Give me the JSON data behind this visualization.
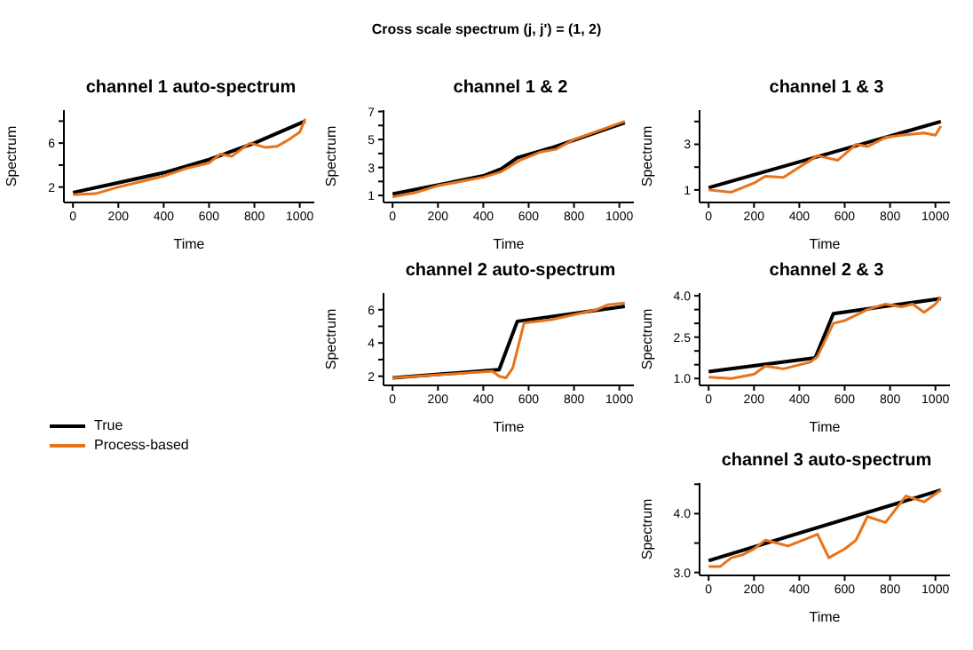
{
  "chart_data": [
    {
      "type": "line",
      "title": "channel 1 auto-spectrum",
      "annotations": [
        "Cross scale spectrum (j, j') = (1, 2)"
      ],
      "xlabel": "Time",
      "ylabel": "Spectrum",
      "legend": "bottom",
      "xlim": [
        -40,
        1064
      ],
      "xticks": [
        0,
        200,
        400,
        600,
        800,
        1000
      ],
      "ylim": [
        0.6,
        9.0
      ],
      "yticks": [
        2,
        {
          "value": 4,
          "label": null
        },
        6,
        {
          "value": 8,
          "label": null
        }
      ],
      "series": [
        {
          "name": "True",
          "color": "#000000",
          "x": [
            0,
            200,
            400,
            600,
            800,
            1024
          ],
          "values": [
            1.5,
            2.4,
            3.3,
            4.5,
            6.0,
            8.0
          ]
        },
        {
          "name": "Process-based",
          "color": "#e8731b",
          "x": [
            0,
            100,
            200,
            300,
            400,
            500,
            600,
            650,
            700,
            780,
            850,
            900,
            950,
            1000,
            1024
          ],
          "values": [
            1.3,
            1.4,
            2.0,
            2.5,
            3.0,
            3.7,
            4.2,
            5.0,
            4.8,
            6.0,
            5.6,
            5.7,
            6.3,
            7.0,
            8.2
          ]
        }
      ]
    },
    {
      "type": "line",
      "title": "channel 1 & 2",
      "xlabel": "Time",
      "ylabel": "Spectrum",
      "xlim": [
        -40,
        1064
      ],
      "xticks": [
        0,
        200,
        400,
        600,
        800,
        1000
      ],
      "ylim": [
        0.5,
        7.1
      ],
      "yticks": [
        1,
        {
          "value": 2,
          "label": null
        },
        3,
        {
          "value": 4,
          "label": null
        },
        5,
        {
          "value": 6,
          "label": null
        },
        7
      ],
      "series": [
        {
          "color": "#000000",
          "x": [
            0,
            400,
            480,
            550,
            700,
            1024
          ],
          "values": [
            1.1,
            2.4,
            2.9,
            3.7,
            4.4,
            6.2
          ]
        },
        {
          "color": "#e8731b",
          "x": [
            0,
            100,
            200,
            400,
            480,
            560,
            650,
            720,
            800,
            1024
          ],
          "values": [
            0.9,
            1.2,
            1.7,
            2.3,
            2.7,
            3.5,
            4.1,
            4.3,
            5.0,
            6.3
          ]
        }
      ]
    },
    {
      "type": "line",
      "title": "channel 1 & 3",
      "xlabel": "Time",
      "ylabel": "Spectrum",
      "xlim": [
        -40,
        1064
      ],
      "xticks": [
        0,
        200,
        400,
        600,
        800,
        1000
      ],
      "ylim": [
        0.45,
        4.5
      ],
      "yticks": [
        1,
        {
          "value": 2,
          "label": null
        },
        3,
        {
          "value": 4,
          "label": null
        }
      ],
      "series": [
        {
          "color": "#000000",
          "x": [
            0,
            1024
          ],
          "values": [
            1.1,
            4.0
          ]
        },
        {
          "color": "#e8731b",
          "x": [
            0,
            100,
            200,
            250,
            330,
            400,
            480,
            570,
            650,
            700,
            780,
            850,
            950,
            1000,
            1024
          ],
          "values": [
            1.0,
            0.9,
            1.3,
            1.6,
            1.55,
            2.0,
            2.5,
            2.3,
            3.0,
            2.9,
            3.3,
            3.4,
            3.5,
            3.4,
            3.8
          ]
        }
      ]
    },
    {
      "type": "line",
      "title": "channel 2 auto-spectrum",
      "xlabel": "Time",
      "ylabel": "Spectrum",
      "xlim": [
        -40,
        1064
      ],
      "xticks": [
        0,
        200,
        400,
        600,
        800,
        1000
      ],
      "ylim": [
        1.45,
        7.0
      ],
      "yticks": [
        2,
        {
          "value": 3,
          "label": null
        },
        4,
        {
          "value": 5,
          "label": null
        },
        6
      ],
      "series": [
        {
          "color": "#000000",
          "x": [
            0,
            470,
            550,
            1024
          ],
          "values": [
            1.9,
            2.4,
            5.3,
            6.2
          ]
        },
        {
          "color": "#e8731b",
          "x": [
            0,
            440,
            470,
            500,
            530,
            580,
            700,
            900,
            950,
            1024
          ],
          "values": [
            1.9,
            2.3,
            2.0,
            1.9,
            2.5,
            5.2,
            5.4,
            6.0,
            6.3,
            6.4
          ]
        }
      ]
    },
    {
      "type": "line",
      "title": "channel 2 & 3",
      "xlabel": "Time",
      "ylabel": "Spectrum",
      "xlim": [
        -40,
        1064
      ],
      "xticks": [
        0,
        200,
        400,
        600,
        800,
        1000
      ],
      "ylim": [
        0.75,
        4.1
      ],
      "yticks": [
        {
          "value": 1,
          "label": "1.0"
        },
        {
          "value": 1.5,
          "label": null
        },
        {
          "value": 2,
          "label": null
        },
        2.5,
        {
          "value": 3,
          "label": null
        },
        {
          "value": 3.5,
          "label": null
        },
        {
          "value": 4,
          "label": "4.0"
        }
      ],
      "series": [
        {
          "color": "#000000",
          "x": [
            0,
            470,
            550,
            1024
          ],
          "values": [
            1.25,
            1.75,
            3.35,
            3.9
          ]
        },
        {
          "color": "#e8731b",
          "x": [
            0,
            100,
            200,
            250,
            330,
            450,
            480,
            550,
            600,
            700,
            780,
            850,
            900,
            950,
            1000,
            1024
          ],
          "values": [
            1.05,
            1.0,
            1.15,
            1.45,
            1.35,
            1.6,
            1.8,
            3.0,
            3.1,
            3.5,
            3.7,
            3.6,
            3.7,
            3.4,
            3.7,
            3.95
          ]
        }
      ]
    },
    {
      "type": "line",
      "title": "channel 3 auto-spectrum",
      "xlabel": "Time",
      "ylabel": "Spectrum",
      "xlim": [
        -40,
        1064
      ],
      "xticks": [
        0,
        200,
        400,
        600,
        800,
        1000
      ],
      "ylim": [
        2.95,
        4.52
      ],
      "yticks": [
        {
          "value": 3,
          "label": "3.0"
        },
        {
          "value": 3.5,
          "label": null
        },
        {
          "value": 4,
          "label": "4.0"
        },
        {
          "value": 4.5,
          "label": null
        }
      ],
      "series": [
        {
          "color": "#000000",
          "x": [
            0,
            1024
          ],
          "values": [
            3.2,
            4.4
          ]
        },
        {
          "color": "#e8731b",
          "x": [
            0,
            50,
            100,
            150,
            200,
            250,
            300,
            350,
            450,
            480,
            530,
            600,
            650,
            700,
            780,
            870,
            950,
            1024
          ],
          "values": [
            3.1,
            3.1,
            3.25,
            3.3,
            3.4,
            3.55,
            3.5,
            3.45,
            3.6,
            3.65,
            3.25,
            3.4,
            3.55,
            3.95,
            3.85,
            4.3,
            4.2,
            4.4
          ]
        }
      ]
    }
  ]
}
